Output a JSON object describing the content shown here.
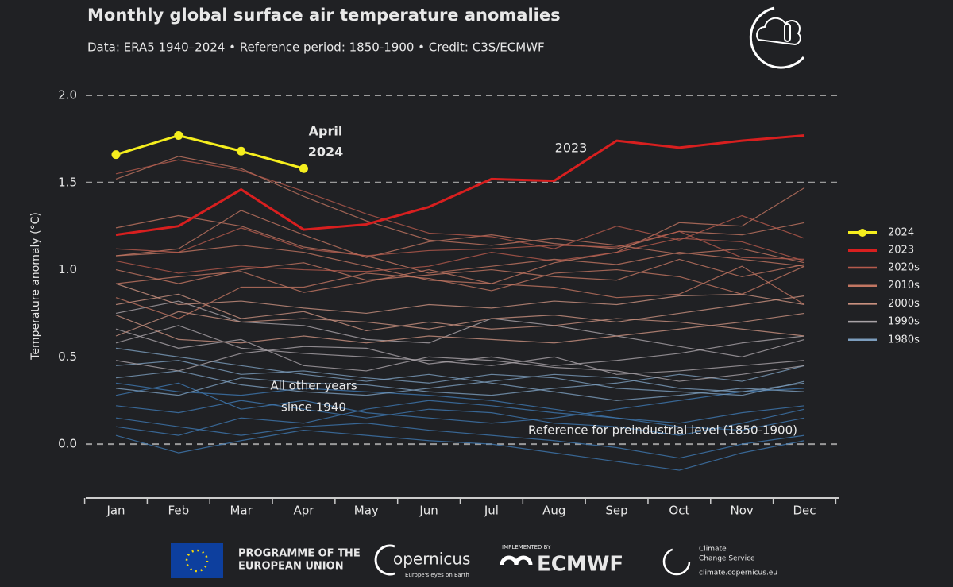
{
  "chart_data": {
    "type": "line",
    "title": "Monthly global surface air temperature anomalies",
    "subtitle": "Data: ERA5 1940–2024 • Reference period: 1850-1900 • Credit: C3S/ECMWF",
    "y_label": "Temperature anomaly (°C)",
    "categories": [
      "Jan",
      "Feb",
      "Mar",
      "Apr",
      "May",
      "Jun",
      "Jul",
      "Aug",
      "Sep",
      "Oct",
      "Nov",
      "Dec"
    ],
    "ylim": [
      -0.3,
      2.0
    ],
    "yticks": [
      {
        "value": 0,
        "label": "0.0",
        "grid": true
      },
      {
        "value": 0.5,
        "label": "0.5"
      },
      {
        "value": 1,
        "label": "1.0"
      },
      {
        "value": 1.5,
        "label": "1.5",
        "grid": true
      },
      {
        "value": 2,
        "label": "2.0",
        "grid": true
      }
    ],
    "legend": "right",
    "series": [
      {
        "name": "2024",
        "color": "#f5ee1e",
        "markers": true,
        "values": [
          1.66,
          1.77,
          1.68,
          1.58,
          null,
          null,
          null,
          null,
          null,
          null,
          null,
          null
        ]
      },
      {
        "name": "2023",
        "color": "#d81f1f",
        "values": [
          1.2,
          1.25,
          1.46,
          1.23,
          1.26,
          1.36,
          1.52,
          1.51,
          1.74,
          1.7,
          1.74,
          1.77
        ]
      },
      {
        "name": "2020s",
        "color": "#b55a4c",
        "lines": [
          [
            1.55,
            1.63,
            1.57,
            1.45,
            1.32,
            1.21,
            1.19,
            1.12,
            1.25,
            1.17,
            1.31,
            1.18
          ],
          [
            1.05,
            0.98,
            1.02,
            1.0,
            0.99,
            1.02,
            1.1,
            1.05,
            1.1,
            1.18,
            1.16,
            1.05
          ],
          [
            1.12,
            1.1,
            1.24,
            1.12,
            1.08,
            1.11,
            1.12,
            1.14,
            1.13,
            1.22,
            1.07,
            1.06
          ]
        ]
      },
      {
        "name": "2010s",
        "color": "#c27662",
        "lines": [
          [
            1.52,
            1.65,
            1.58,
            1.42,
            1.28,
            1.17,
            1.14,
            1.18,
            1.14,
            1.09,
            1.12,
            1.04
          ],
          [
            1.08,
            1.12,
            1.34,
            1.2,
            1.07,
            1.16,
            1.2,
            1.15,
            1.12,
            1.22,
            1.2,
            1.27
          ],
          [
            1.24,
            1.31,
            1.25,
            1.13,
            1.08,
            0.98,
            1.02,
            1.06,
            1.03,
            1.1,
            1.06,
            1.02
          ],
          [
            0.92,
            0.96,
            0.99,
            0.87,
            0.93,
            1.0,
            0.92,
            1.04,
            1.1,
            1.27,
            1.25,
            1.47
          ],
          [
            1.0,
            0.92,
            1.0,
            1.04,
            0.94,
            0.97,
            1.0,
            0.96,
            0.94,
            1.06,
            0.96,
            1.03
          ],
          [
            1.08,
            1.1,
            1.14,
            1.1,
            1.02,
            0.94,
            0.92,
            0.9,
            0.84,
            0.86,
            1.02,
            0.8
          ],
          [
            0.84,
            0.72,
            0.9,
            0.9,
            0.98,
            0.95,
            0.88,
            0.98,
            1.0,
            0.96,
            0.86,
            1.02
          ]
        ]
      },
      {
        "name": "2000s",
        "color": "#c9917f",
        "lines": [
          [
            0.92,
            0.8,
            0.82,
            0.78,
            0.75,
            0.8,
            0.78,
            0.82,
            0.8,
            0.85,
            0.86,
            0.8
          ],
          [
            0.62,
            0.76,
            0.7,
            0.72,
            0.7,
            0.66,
            0.72,
            0.74,
            0.7,
            0.75,
            0.8,
            0.85
          ],
          [
            0.8,
            0.86,
            0.72,
            0.76,
            0.65,
            0.7,
            0.66,
            0.68,
            0.72,
            0.7,
            0.66,
            0.62
          ],
          [
            0.74,
            0.6,
            0.58,
            0.62,
            0.58,
            0.62,
            0.6,
            0.58,
            0.62,
            0.66,
            0.7,
            0.75
          ]
        ]
      },
      {
        "name": "1990s",
        "color": "#a9a3a7",
        "lines": [
          [
            0.75,
            0.82,
            0.7,
            0.68,
            0.6,
            0.58,
            0.72,
            0.68,
            0.62,
            0.56,
            0.5,
            0.6
          ],
          [
            0.58,
            0.68,
            0.55,
            0.52,
            0.5,
            0.48,
            0.45,
            0.5,
            0.4,
            0.42,
            0.45,
            0.48
          ],
          [
            0.48,
            0.42,
            0.52,
            0.56,
            0.55,
            0.46,
            0.5,
            0.45,
            0.48,
            0.52,
            0.58,
            0.62
          ],
          [
            0.66,
            0.55,
            0.6,
            0.45,
            0.42,
            0.5,
            0.48,
            0.44,
            0.42,
            0.36,
            0.4,
            0.45
          ]
        ]
      },
      {
        "name": "1980s",
        "color": "#7c9dbd",
        "lines": [
          [
            0.45,
            0.48,
            0.4,
            0.42,
            0.38,
            0.35,
            0.4,
            0.38,
            0.32,
            0.3,
            0.28,
            0.36
          ],
          [
            0.32,
            0.28,
            0.38,
            0.35,
            0.34,
            0.3,
            0.28,
            0.32,
            0.35,
            0.4,
            0.36,
            0.45
          ],
          [
            0.55,
            0.5,
            0.45,
            0.4,
            0.36,
            0.4,
            0.35,
            0.3,
            0.25,
            0.28,
            0.32,
            0.3
          ],
          [
            0.38,
            0.42,
            0.34,
            0.3,
            0.28,
            0.32,
            0.36,
            0.4,
            0.38,
            0.32,
            0.3,
            0.35
          ]
        ]
      },
      {
        "color": "#3f78b0",
        "lines": [
          [
            0.22,
            0.18,
            0.25,
            0.2,
            0.15,
            0.2,
            0.18,
            0.12,
            0.1,
            0.05,
            0.12,
            0.2
          ],
          [
            0.1,
            0.05,
            0.15,
            0.12,
            0.2,
            0.25,
            0.22,
            0.18,
            0.15,
            0.1,
            0.08,
            0.15
          ],
          [
            0.35,
            0.3,
            0.28,
            0.32,
            0.3,
            0.28,
            0.25,
            0.2,
            0.15,
            0.12,
            0.18,
            0.22
          ],
          [
            0.05,
            -0.05,
            0.02,
            0.08,
            0.05,
            0.02,
            0.0,
            -0.05,
            -0.1,
            -0.15,
            -0.05,
            0.02
          ],
          [
            0.28,
            0.35,
            0.2,
            0.25,
            0.18,
            0.15,
            0.12,
            0.15,
            0.2,
            0.25,
            0.3,
            0.32
          ],
          [
            0.15,
            0.1,
            0.05,
            0.1,
            0.12,
            0.08,
            0.05,
            0.02,
            -0.02,
            -0.08,
            0.0,
            0.05
          ]
        ]
      }
    ],
    "annotations": {
      "april": [
        "April",
        "2024"
      ],
      "year_2023": "2023",
      "other": [
        "All other years",
        "since 1940"
      ],
      "reference": "Reference for preindustrial level (1850-1900)"
    }
  },
  "footer": {
    "eu": [
      "PROGRAMME OF THE",
      "EUROPEAN UNION"
    ],
    "copernicus": "opernicus",
    "copernicus_tag": "Europe's eyes on Earth",
    "implemented": "IMPLEMENTED BY",
    "ecmwf": "ECMWF",
    "c3s": [
      "Climate",
      "Change Service"
    ],
    "c3s_url": "climate.copernicus.eu"
  }
}
